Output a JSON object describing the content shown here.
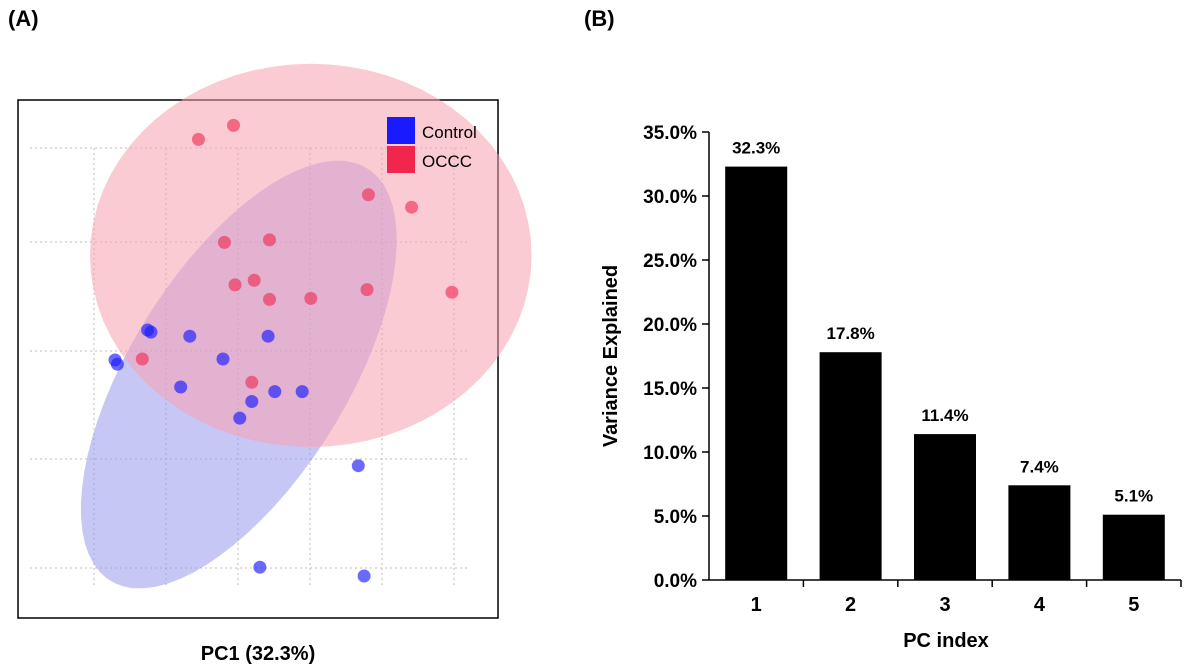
{
  "panels": {
    "a_label": "(A)",
    "b_label": "(B)"
  },
  "colors": {
    "control": "#1a1aff",
    "occc": "#f0264f",
    "control_fill": "#9999ee",
    "occc_fill": "#f7a1b0",
    "bar": "#000000"
  },
  "chart_data": [
    {
      "type": "scatter",
      "title": "",
      "xlabel": "PC1 (32.3%)",
      "ylabel": "",
      "xlim": [
        0,
        100
      ],
      "ylim": [
        0,
        100
      ],
      "grid": true,
      "legend_position": "top-right",
      "series": [
        {
          "name": "Control",
          "points": [
            [
              20.7,
              49.0
            ],
            [
              20.2,
              49.8
            ],
            [
              27.7,
              55.2
            ],
            [
              27.0,
              55.6
            ],
            [
              35.8,
              54.4
            ],
            [
              42.7,
              50.0
            ],
            [
              52.1,
              54.4
            ],
            [
              33.9,
              44.6
            ],
            [
              48.7,
              41.8
            ],
            [
              53.5,
              43.7
            ],
            [
              59.2,
              43.7
            ],
            [
              46.2,
              38.6
            ],
            [
              70.9,
              29.4
            ],
            [
              50.4,
              9.8
            ],
            [
              72.1,
              8.1
            ]
          ]
        },
        {
          "name": "OCCC",
          "points": [
            [
              37.6,
              92.4
            ],
            [
              44.9,
              95.1
            ],
            [
              73.0,
              81.7
            ],
            [
              82.0,
              79.3
            ],
            [
              43.0,
              72.5
            ],
            [
              52.4,
              73.0
            ],
            [
              45.2,
              64.3
            ],
            [
              49.2,
              65.2
            ],
            [
              52.4,
              61.5
            ],
            [
              61.0,
              61.7
            ],
            [
              72.7,
              63.4
            ],
            [
              90.4,
              62.9
            ],
            [
              25.9,
              50.0
            ],
            [
              48.7,
              45.5
            ]
          ]
        }
      ],
      "ellipses": [
        {
          "series": "Control",
          "center": [
            46,
            47
          ],
          "semi_axes": [
            48,
            22
          ],
          "angle": 55
        },
        {
          "series": "OCCC",
          "center": [
            61,
            70
          ],
          "semi_axes": [
            46,
            37
          ],
          "angle": 0
        }
      ]
    },
    {
      "type": "bar",
      "title": "",
      "xlabel": "PC index",
      "ylabel": "Variance Explained",
      "categories": [
        "1",
        "2",
        "3",
        "4",
        "5"
      ],
      "values": [
        32.3,
        17.8,
        11.4,
        7.4,
        5.1
      ],
      "data_labels": [
        "32.3%",
        "17.8%",
        "11.4%",
        "7.4%",
        "5.1%"
      ],
      "ylim": [
        0,
        35
      ],
      "yticks": [
        "0.0%",
        "5.0%",
        "10.0%",
        "15.0%",
        "20.0%",
        "25.0%",
        "30.0%",
        "35.0%"
      ],
      "grid": false
    }
  ]
}
